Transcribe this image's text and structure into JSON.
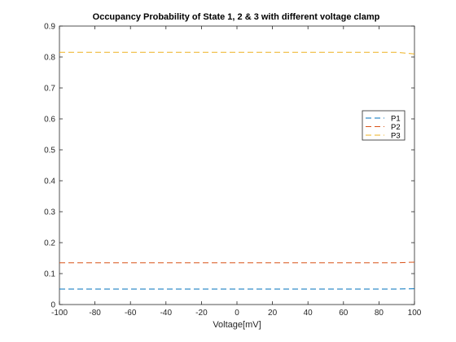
{
  "chart_data": {
    "type": "line",
    "title": "Occupancy Probability of State 1, 2 & 3 with different voltage clamp",
    "xlabel": "Voltage[mV]",
    "ylabel": "",
    "xlim": [
      -100,
      100
    ],
    "ylim": [
      0,
      0.9
    ],
    "xticks": [
      -100,
      -80,
      -60,
      -40,
      -20,
      0,
      20,
      40,
      60,
      80,
      100
    ],
    "yticks": [
      0,
      0.1,
      0.2,
      0.3,
      0.4,
      0.5,
      0.6,
      0.7,
      0.8,
      0.9
    ],
    "xtick_labels": [
      "-100",
      "-80",
      "-60",
      "-40",
      "-20",
      "0",
      "20",
      "40",
      "60",
      "80",
      "100"
    ],
    "ytick_labels": [
      "0",
      "0.1",
      "0.2",
      "0.3",
      "0.4",
      "0.5",
      "0.6",
      "0.7",
      "0.8",
      "0.9"
    ],
    "grid": false,
    "legend_position": "right",
    "line_style": "dashed",
    "x": [
      -100,
      -80,
      -60,
      -40,
      -20,
      0,
      20,
      40,
      60,
      80,
      90,
      100
    ],
    "series": [
      {
        "name": "P1",
        "color": "#0072BD",
        "values": [
          0.05,
          0.05,
          0.05,
          0.05,
          0.05,
          0.05,
          0.05,
          0.05,
          0.05,
          0.05,
          0.05,
          0.051
        ]
      },
      {
        "name": "P2",
        "color": "#D95319",
        "values": [
          0.135,
          0.135,
          0.135,
          0.135,
          0.135,
          0.135,
          0.135,
          0.135,
          0.135,
          0.135,
          0.135,
          0.137
        ]
      },
      {
        "name": "P3",
        "color": "#EDB120",
        "values": [
          0.815,
          0.815,
          0.815,
          0.815,
          0.815,
          0.815,
          0.815,
          0.815,
          0.815,
          0.815,
          0.815,
          0.81
        ]
      }
    ]
  }
}
